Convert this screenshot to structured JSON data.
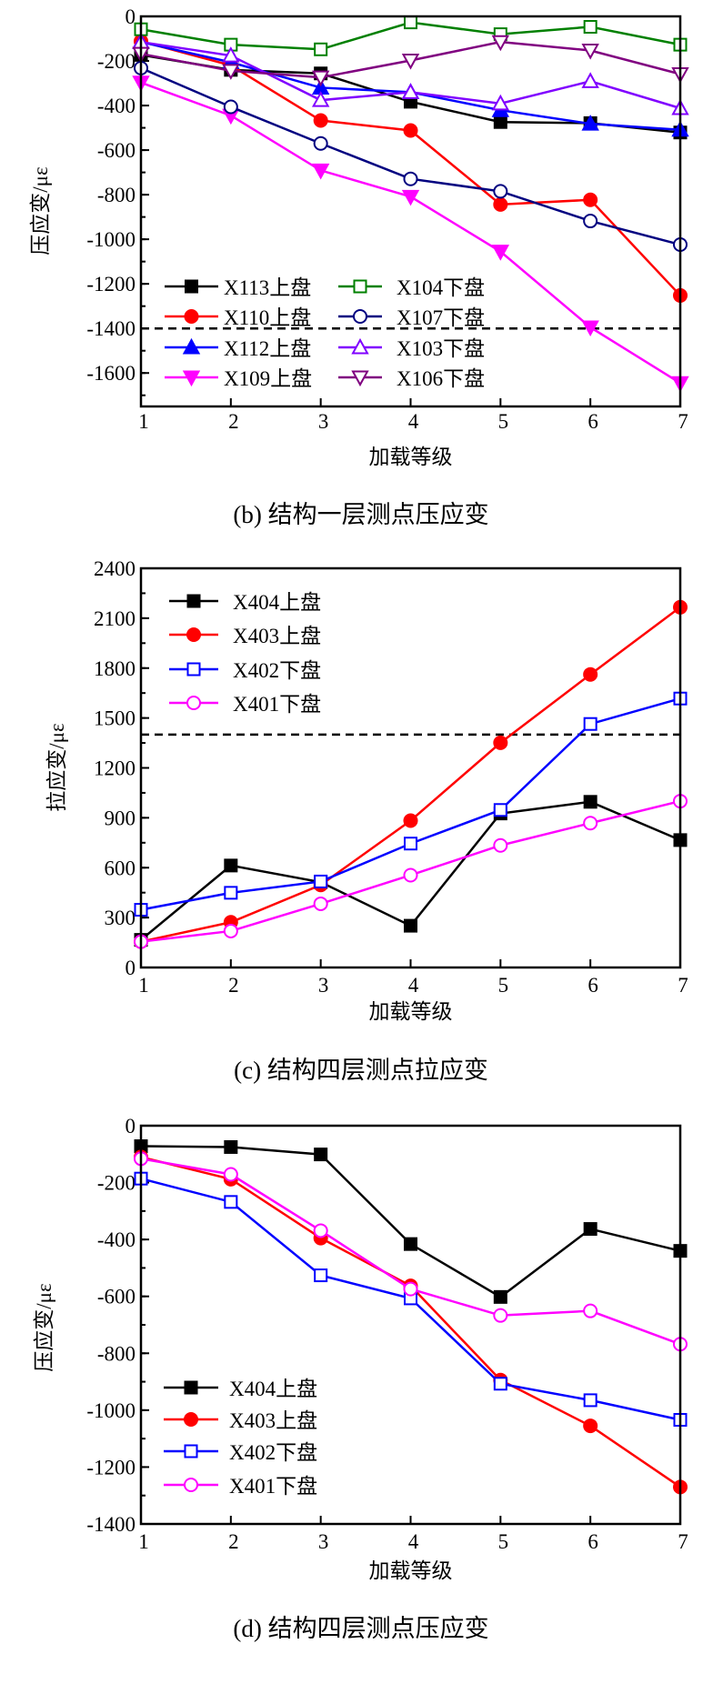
{
  "chart_data": [
    {
      "type": "line",
      "title": "(b)  结构一层测点压应变",
      "xlabel": "加载等级",
      "ylabel": "压应变/με",
      "x": [
        1,
        2,
        3,
        4,
        5,
        6,
        7
      ],
      "xticks": [
        "1",
        "2",
        "3",
        "4",
        "5",
        "6",
        "7"
      ],
      "ylim": [
        -1750,
        0
      ],
      "yticks": [
        0,
        -200,
        -400,
        -600,
        -800,
        -1000,
        -1200,
        -1400,
        -1600
      ],
      "ytick_labels": [
        "0",
        "-200",
        "-400",
        "-600",
        "-800",
        "-1000",
        "-1200",
        "-1400",
        "-1600"
      ],
      "reference_line": -1400,
      "legend_placement": "lower-left",
      "series": [
        {
          "name": "X113上盘",
          "color": "#000000",
          "marker": "square",
          "filled": true,
          "values": [
            -173,
            -240,
            -256,
            -383,
            -474,
            -479,
            -521
          ]
        },
        {
          "name": "X110上盘",
          "color": "#ff0000",
          "marker": "circle",
          "filled": true,
          "values": [
            -112,
            -220,
            -467,
            -512,
            -844,
            -823,
            -1252
          ]
        },
        {
          "name": "X112上盘",
          "color": "#0000ff",
          "marker": "triangle-up",
          "filled": true,
          "values": [
            -115,
            -206,
            -320,
            -340,
            -421,
            -482,
            -509
          ]
        },
        {
          "name": "X109上盘",
          "color": "#ff00ff",
          "marker": "triangle-down",
          "filled": true,
          "values": [
            -297,
            -445,
            -691,
            -809,
            -1055,
            -1395,
            -1645
          ]
        },
        {
          "name": "X104下盘",
          "color": "#008000",
          "marker": "square",
          "filled": false,
          "values": [
            -58,
            -127,
            -148,
            -27,
            -80,
            -47,
            -127
          ]
        },
        {
          "name": "X107下盘",
          "color": "#000080",
          "marker": "circle",
          "filled": false,
          "values": [
            -232,
            -406,
            -570,
            -729,
            -785,
            -918,
            -1024
          ]
        },
        {
          "name": "X103下盘",
          "color": "#8000ff",
          "marker": "triangle-up",
          "filled": false,
          "values": [
            -115,
            -176,
            -376,
            -340,
            -391,
            -291,
            -412
          ]
        },
        {
          "name": "X106下盘",
          "color": "#800080",
          "marker": "triangle-down",
          "filled": false,
          "values": [
            -168,
            -244,
            -274,
            -198,
            -115,
            -153,
            -259
          ]
        }
      ]
    },
    {
      "type": "line",
      "title": "(c)  结构四层测点拉应变",
      "xlabel": "加载等级",
      "ylabel": "拉应变/με",
      "x": [
        1,
        2,
        3,
        4,
        5,
        6,
        7
      ],
      "xticks": [
        "1",
        "2",
        "3",
        "4",
        "5",
        "6",
        "7"
      ],
      "ylim": [
        0,
        2400
      ],
      "yticks": [
        0,
        300,
        600,
        900,
        1200,
        1500,
        1800,
        2100,
        2400
      ],
      "ytick_labels": [
        "0",
        "300",
        "600",
        "900",
        "1200",
        "1500",
        "1800",
        "2100",
        "2400"
      ],
      "reference_line": 1400,
      "legend_placement": "top-left",
      "series": [
        {
          "name": "X404上盘",
          "color": "#000000",
          "marker": "square",
          "filled": true,
          "values": [
            166,
            613,
            513,
            251,
            926,
            996,
            766
          ]
        },
        {
          "name": "X403上盘",
          "color": "#ff0000",
          "marker": "circle",
          "filled": true,
          "values": [
            155,
            272,
            496,
            883,
            1351,
            1762,
            2166
          ]
        },
        {
          "name": "X402下盘",
          "color": "#0000ff",
          "marker": "square",
          "filled": false,
          "values": [
            347,
            449,
            517,
            745,
            947,
            1464,
            1617
          ]
        },
        {
          "name": "X401下盘",
          "color": "#ff00ff",
          "marker": "circle",
          "filled": false,
          "values": [
            155,
            219,
            383,
            555,
            734,
            868,
            1000
          ]
        }
      ]
    },
    {
      "type": "line",
      "title": "(d)  结构四层测点压应变",
      "xlabel": "加载等级",
      "ylabel": "压应变/με",
      "x": [
        1,
        2,
        3,
        4,
        5,
        6,
        7
      ],
      "xticks": [
        "1",
        "2",
        "3",
        "4",
        "5",
        "6",
        "7"
      ],
      "ylim": [
        -1400,
        0
      ],
      "yticks": [
        0,
        -200,
        -400,
        -600,
        -800,
        -1000,
        -1200,
        -1400
      ],
      "ytick_labels": [
        "0",
        "-200",
        "-400",
        "-600",
        "-800",
        "-1000",
        "-1200",
        "-1400"
      ],
      "legend_placement": "lower-left",
      "series": [
        {
          "name": "X404上盘",
          "color": "#000000",
          "marker": "square",
          "filled": true,
          "values": [
            -72,
            -75,
            -101,
            -416,
            -602,
            -363,
            -440
          ]
        },
        {
          "name": "X403上盘",
          "color": "#ff0000",
          "marker": "circle",
          "filled": true,
          "values": [
            -110,
            -188,
            -395,
            -563,
            -894,
            -1055,
            -1270
          ]
        },
        {
          "name": "X402下盘",
          "color": "#0000ff",
          "marker": "square",
          "filled": false,
          "values": [
            -186,
            -268,
            -526,
            -607,
            -907,
            -965,
            -1034
          ]
        },
        {
          "name": "X401下盘",
          "color": "#ff00ff",
          "marker": "circle",
          "filled": false,
          "values": [
            -116,
            -171,
            -369,
            -574,
            -667,
            -651,
            -768
          ]
        }
      ]
    }
  ]
}
